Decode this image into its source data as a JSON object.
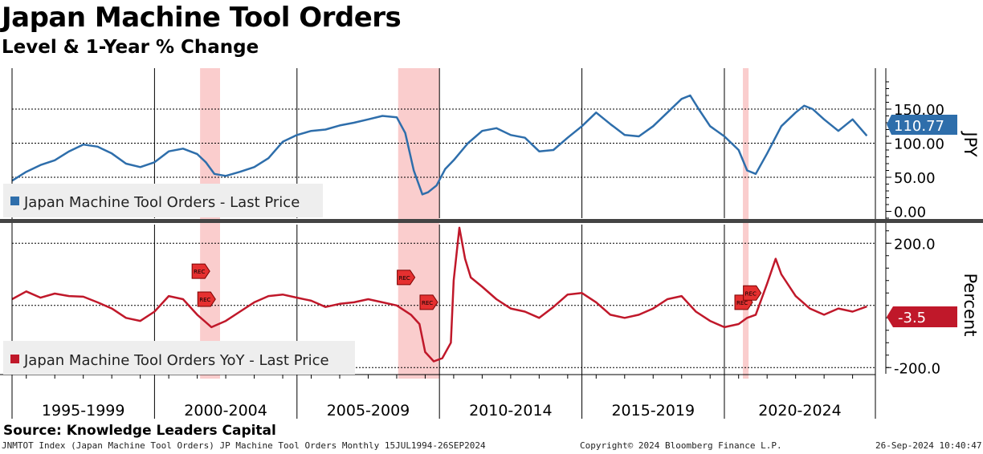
{
  "title": "Japan Machine Tool Orders",
  "subtitle": "Level & 1-Year % Change",
  "source": "Source: Knowledge Leaders Capital",
  "footer": {
    "left": "JNMTOT Index (Japan Machine Tool Orders) JP Machine Tool Orders  Monthly 15JUL1994-26SEP2024",
    "middle": "Copyright© 2024 Bloomberg Finance L.P.",
    "right": "26-Sep-2024 10:40:47"
  },
  "colors": {
    "level": "#2e6eab",
    "yoy": "#c0182a",
    "recession": "#f9c4c4",
    "axis": "#000000",
    "grid": "#000000"
  },
  "chart_data": [
    {
      "type": "line",
      "title": "",
      "ylabel": "JPY",
      "ylim": [
        -10,
        210
      ],
      "yticks": [
        0,
        50,
        100,
        150
      ],
      "ytick_labels": [
        "0.00",
        "50.00",
        "100.00",
        "150.00"
      ],
      "last_value_label": "110.77",
      "grid": true,
      "legend_position": "bottom-left",
      "series": [
        {
          "name": "Japan Machine Tool Orders - Last Price",
          "color": "#2e6eab",
          "x": [
            1994.5,
            1995,
            1995.5,
            1996,
            1996.5,
            1997,
            1997.5,
            1998,
            1998.5,
            1999,
            1999.5,
            2000,
            2000.5,
            2001,
            2001.3,
            2001.6,
            2002,
            2002.5,
            2003,
            2003.5,
            2004,
            2004.5,
            2005,
            2005.5,
            2006,
            2006.5,
            2007,
            2007.5,
            2008,
            2008.3,
            2008.6,
            2008.9,
            2009.1,
            2009.4,
            2009.7,
            2010,
            2010.5,
            2011,
            2011.5,
            2012,
            2012.5,
            2013,
            2013.5,
            2014,
            2014.5,
            2015,
            2015.5,
            2016,
            2016.5,
            2017,
            2017.5,
            2018,
            2018.3,
            2018.6,
            2019,
            2019.5,
            2020,
            2020.3,
            2020.6,
            2021,
            2021.5,
            2022,
            2022.3,
            2022.6,
            2023,
            2023.5,
            2024,
            2024.5
          ],
          "y": [
            45,
            58,
            68,
            75,
            88,
            98,
            95,
            85,
            70,
            65,
            72,
            88,
            92,
            84,
            72,
            55,
            52,
            58,
            65,
            78,
            102,
            112,
            118,
            120,
            126,
            130,
            135,
            140,
            138,
            115,
            60,
            25,
            28,
            38,
            62,
            75,
            100,
            118,
            122,
            112,
            108,
            88,
            90,
            108,
            125,
            145,
            128,
            112,
            110,
            125,
            145,
            165,
            170,
            150,
            125,
            110,
            90,
            60,
            55,
            85,
            125,
            145,
            155,
            150,
            135,
            118,
            135,
            110.77
          ]
        }
      ]
    },
    {
      "type": "line",
      "title": "",
      "ylabel": "Percent",
      "ylim": [
        -220,
        260
      ],
      "yticks": [
        -200,
        200
      ],
      "ytick_labels": [
        "-200.0",
        "200.0"
      ],
      "last_value_label": "-3.5",
      "grid": true,
      "legend_position": "bottom-left",
      "series": [
        {
          "name": "Japan Machine Tool Orders YoY - Last Price",
          "color": "#c0182a",
          "x": [
            1994.5,
            1995,
            1995.5,
            1996,
            1996.5,
            1997,
            1997.5,
            1998,
            1998.5,
            1999,
            1999.5,
            2000,
            2000.5,
            2001,
            2001.5,
            2002,
            2002.5,
            2003,
            2003.5,
            2004,
            2004.5,
            2005,
            2005.5,
            2006,
            2006.5,
            2007,
            2007.5,
            2008,
            2008.5,
            2008.8,
            2009,
            2009.3,
            2009.6,
            2009.9,
            2010,
            2010.2,
            2010.4,
            2010.6,
            2011,
            2011.5,
            2012,
            2012.5,
            2013,
            2013.5,
            2014,
            2014.5,
            2015,
            2015.5,
            2016,
            2016.5,
            2017,
            2017.5,
            2018,
            2018.5,
            2019,
            2019.5,
            2020,
            2020.3,
            2020.6,
            2021,
            2021.3,
            2021.5,
            2022,
            2022.5,
            2023,
            2023.5,
            2024,
            2024.5
          ],
          "y": [
            20,
            45,
            25,
            38,
            30,
            28,
            10,
            -10,
            -40,
            -50,
            -20,
            30,
            20,
            -30,
            -70,
            -50,
            -20,
            10,
            30,
            35,
            25,
            15,
            -5,
            5,
            10,
            20,
            10,
            0,
            -30,
            -60,
            -150,
            -180,
            -170,
            -120,
            80,
            250,
            150,
            90,
            60,
            20,
            -10,
            -20,
            -40,
            -5,
            35,
            40,
            10,
            -30,
            -40,
            -30,
            -10,
            20,
            30,
            -20,
            -50,
            -70,
            -60,
            -40,
            -30,
            70,
            150,
            100,
            30,
            -10,
            -30,
            -10,
            -20,
            -3.5
          ]
        }
      ]
    }
  ],
  "x_axis": {
    "range": [
      1994.5,
      2024.8
    ],
    "period_labels": [
      "1995-1999",
      "2000-2004",
      "2005-2009",
      "2010-2014",
      "2015-2019",
      "2020-2024"
    ],
    "period_boundaries": [
      1999.5,
      2004.5,
      2009.5,
      2014.5,
      2019.5
    ]
  },
  "recessions": [
    [
      2001.1,
      2001.8
    ],
    [
      2008.05,
      2009.5
    ],
    [
      2020.15,
      2020.35
    ]
  ],
  "rec_markers": [
    {
      "label": "REC",
      "x": 2001.1,
      "y": 110
    },
    {
      "label": "REC",
      "x": 2001.3,
      "y": 20
    },
    {
      "label": "REC",
      "x": 2008.3,
      "y": 90
    },
    {
      "label": "REC",
      "x": 2009.1,
      "y": 10
    },
    {
      "label": "REC",
      "x": 2020.15,
      "y": 10
    },
    {
      "label": "REC",
      "x": 2020.45,
      "y": 40
    }
  ]
}
